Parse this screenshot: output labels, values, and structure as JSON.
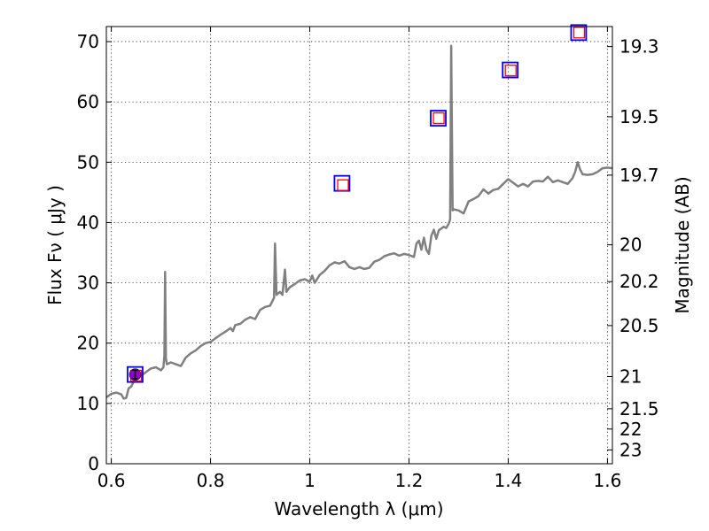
{
  "chart_data": {
    "type": "line",
    "xlabel": "Wavelength  λ (μm)",
    "ylabel": "Flux  Fν  ( μJy )",
    "y2label": "Magnitude (AB)",
    "xlim": [
      0.59,
      1.61
    ],
    "ylim": [
      0,
      72.5
    ],
    "grid": true,
    "x_ticks": [
      {
        "value": 0.6,
        "label": "0.6"
      },
      {
        "value": 0.8,
        "label": "0.8"
      },
      {
        "value": 1.0,
        "label": "1"
      },
      {
        "value": 1.2,
        "label": "1.2"
      },
      {
        "value": 1.4,
        "label": "1.4"
      },
      {
        "value": 1.6,
        "label": "1.6"
      }
    ],
    "y_ticks": [
      {
        "value": 0,
        "label": "0"
      },
      {
        "value": 10,
        "label": "10"
      },
      {
        "value": 20,
        "label": "20"
      },
      {
        "value": 30,
        "label": "30"
      },
      {
        "value": 40,
        "label": "40"
      },
      {
        "value": 50,
        "label": "50"
      },
      {
        "value": 60,
        "label": "60"
      },
      {
        "value": 70,
        "label": "70"
      }
    ],
    "y2_ticks": [
      {
        "mag": 19.3,
        "label": "19.3"
      },
      {
        "mag": 19.5,
        "label": "19.5"
      },
      {
        "mag": 19.7,
        "label": "19.7"
      },
      {
        "mag": 20.0,
        "label": "20"
      },
      {
        "mag": 20.2,
        "label": "20.2"
      },
      {
        "mag": 20.5,
        "label": "20.5"
      },
      {
        "mag": 21.0,
        "label": "21"
      },
      {
        "mag": 21.5,
        "label": "21.5"
      },
      {
        "mag": 22.0,
        "label": "22"
      },
      {
        "mag": 23.0,
        "label": "23"
      }
    ],
    "spectrum": {
      "color": "#808080",
      "points": [
        [
          0.59,
          11.0
        ],
        [
          0.6,
          11.6
        ],
        [
          0.61,
          11.8
        ],
        [
          0.62,
          11.5
        ],
        [
          0.625,
          10.8
        ],
        [
          0.63,
          10.9
        ],
        [
          0.635,
          12.5
        ],
        [
          0.64,
          12.8
        ],
        [
          0.645,
          13.6
        ],
        [
          0.65,
          14.0
        ],
        [
          0.66,
          14.6
        ],
        [
          0.67,
          15.2
        ],
        [
          0.68,
          15.8
        ],
        [
          0.69,
          16.0
        ],
        [
          0.7,
          15.5
        ],
        [
          0.705,
          16.0
        ],
        [
          0.707,
          18.0
        ],
        [
          0.7085,
          31.8
        ],
        [
          0.71,
          17.5
        ],
        [
          0.712,
          16.5
        ],
        [
          0.72,
          16.8
        ],
        [
          0.73,
          16.5
        ],
        [
          0.74,
          16.2
        ],
        [
          0.75,
          17.6
        ],
        [
          0.76,
          18.3
        ],
        [
          0.77,
          18.8
        ],
        [
          0.78,
          19.5
        ],
        [
          0.79,
          20.0
        ],
        [
          0.8,
          20.2
        ],
        [
          0.81,
          20.8
        ],
        [
          0.82,
          21.4
        ],
        [
          0.83,
          21.9
        ],
        [
          0.84,
          22.5
        ],
        [
          0.845,
          22.0
        ],
        [
          0.85,
          23.0
        ],
        [
          0.86,
          23.2
        ],
        [
          0.87,
          23.9
        ],
        [
          0.88,
          24.3
        ],
        [
          0.89,
          24.0
        ],
        [
          0.9,
          25.5
        ],
        [
          0.91,
          26.0
        ],
        [
          0.92,
          26.2
        ],
        [
          0.925,
          27.0
        ],
        [
          0.928,
          27.5
        ],
        [
          0.93,
          36.5
        ],
        [
          0.933,
          28.0
        ],
        [
          0.94,
          28.5
        ],
        [
          0.945,
          28.0
        ],
        [
          0.95,
          32.2
        ],
        [
          0.953,
          28.5
        ],
        [
          0.96,
          29.3
        ],
        [
          0.97,
          29.8
        ],
        [
          0.98,
          30.4
        ],
        [
          0.99,
          30.6
        ],
        [
          1.0,
          30.2
        ],
        [
          1.005,
          31.2
        ],
        [
          1.01,
          30.0
        ],
        [
          1.02,
          31.3
        ],
        [
          1.03,
          32.0
        ],
        [
          1.04,
          32.9
        ],
        [
          1.05,
          33.4
        ],
        [
          1.06,
          33.2
        ],
        [
          1.07,
          33.6
        ],
        [
          1.08,
          32.6
        ],
        [
          1.09,
          32.3
        ],
        [
          1.1,
          32.6
        ],
        [
          1.11,
          32.3
        ],
        [
          1.12,
          32.5
        ],
        [
          1.13,
          33.5
        ],
        [
          1.14,
          33.8
        ],
        [
          1.15,
          34.4
        ],
        [
          1.16,
          34.7
        ],
        [
          1.17,
          34.9
        ],
        [
          1.18,
          34.5
        ],
        [
          1.19,
          34.8
        ],
        [
          1.2,
          34.6
        ],
        [
          1.21,
          34.3
        ],
        [
          1.215,
          36.5
        ],
        [
          1.22,
          37.0
        ],
        [
          1.225,
          35.5
        ],
        [
          1.23,
          37.5
        ],
        [
          1.235,
          35.5
        ],
        [
          1.24,
          34.8
        ],
        [
          1.245,
          37.8
        ],
        [
          1.25,
          38.8
        ],
        [
          1.255,
          37.3
        ],
        [
          1.26,
          38.7
        ],
        [
          1.27,
          39.3
        ],
        [
          1.275,
          39.1
        ],
        [
          1.28,
          39.8
        ],
        [
          1.283,
          40.5
        ],
        [
          1.285,
          69.3
        ],
        [
          1.288,
          42.0
        ],
        [
          1.29,
          42.2
        ],
        [
          1.3,
          42.0
        ],
        [
          1.31,
          41.5
        ],
        [
          1.32,
          43.5
        ],
        [
          1.33,
          43.9
        ],
        [
          1.34,
          44.4
        ],
        [
          1.35,
          45.5
        ],
        [
          1.36,
          44.8
        ],
        [
          1.37,
          45.4
        ],
        [
          1.38,
          45.6
        ],
        [
          1.39,
          46.4
        ],
        [
          1.4,
          47.2
        ],
        [
          1.41,
          46.6
        ],
        [
          1.42,
          46.0
        ],
        [
          1.43,
          46.4
        ],
        [
          1.44,
          46.0
        ],
        [
          1.45,
          46.8
        ],
        [
          1.46,
          46.9
        ],
        [
          1.47,
          46.8
        ],
        [
          1.48,
          47.6
        ],
        [
          1.49,
          46.7
        ],
        [
          1.5,
          47.0
        ],
        [
          1.51,
          46.7
        ],
        [
          1.52,
          46.4
        ],
        [
          1.53,
          47.4
        ],
        [
          1.535,
          48.4
        ],
        [
          1.54,
          50.0
        ],
        [
          1.545,
          48.8
        ],
        [
          1.55,
          48.0
        ],
        [
          1.56,
          47.9
        ],
        [
          1.57,
          48.0
        ],
        [
          1.58,
          48.4
        ],
        [
          1.59,
          49.0
        ],
        [
          1.6,
          49.1
        ],
        [
          1.61,
          49.0
        ]
      ]
    },
    "photometry": [
      {
        "x": 0.648,
        "y": 14.8,
        "marker": "square",
        "edge": "#0000ff"
      },
      {
        "x": 1.065,
        "y": 46.5,
        "marker": "square",
        "edge": "#0000ff"
      },
      {
        "x": 1.259,
        "y": 57.3,
        "marker": "square",
        "edge": "#0000ff"
      },
      {
        "x": 1.404,
        "y": 65.3,
        "marker": "square",
        "edge": "#0000ff"
      },
      {
        "x": 1.542,
        "y": 71.5,
        "marker": "square",
        "edge": "#0000ff"
      }
    ],
    "model_points": [
      {
        "x": 0.65,
        "y": 14.6,
        "marker": "square",
        "edge": "#ff0000"
      },
      {
        "x": 1.067,
        "y": 46.2,
        "marker": "square",
        "edge": "#ff0000"
      },
      {
        "x": 1.26,
        "y": 57.3,
        "marker": "square",
        "edge": "#ff0000"
      },
      {
        "x": 1.405,
        "y": 65.2,
        "marker": "square",
        "edge": "#ff0000"
      },
      {
        "x": 1.543,
        "y": 71.5,
        "marker": "square",
        "edge": "#ff0000"
      }
    ],
    "measured_point": {
      "x": 0.648,
      "y": 14.8,
      "yerr": 0.7,
      "color": "#9400d3"
    }
  }
}
